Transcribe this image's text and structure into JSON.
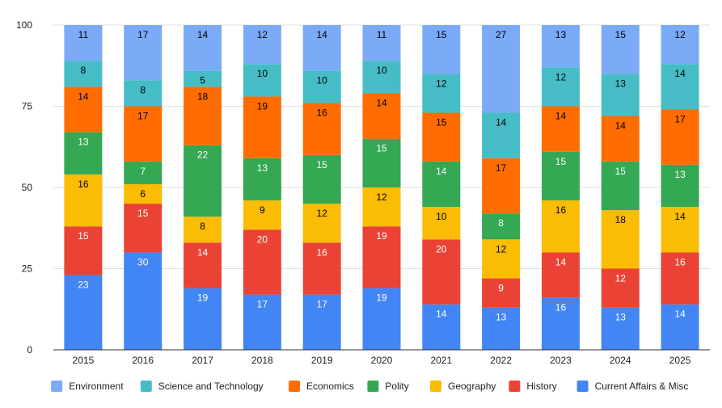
{
  "chart_data": {
    "type": "bar",
    "stacked": true,
    "title": "",
    "xlabel": "",
    "ylabel": "",
    "categories": [
      "2015",
      "2016",
      "2017",
      "2018",
      "2019",
      "2020",
      "2021",
      "2022",
      "2023",
      "2024",
      "2025"
    ],
    "ylim": [
      0,
      100
    ],
    "yticks": [
      0,
      25,
      50,
      75,
      100
    ],
    "grid": true,
    "legend_position": "bottom",
    "series": [
      {
        "name": "Current Affairs & Misc",
        "color": "#4285F4",
        "label_color": "#ffffff",
        "values": [
          23,
          30,
          19,
          17,
          17,
          19,
          14,
          13,
          16,
          13,
          14
        ]
      },
      {
        "name": "History",
        "color": "#EA4335",
        "label_color": "#ffffff",
        "values": [
          15,
          15,
          14,
          20,
          16,
          19,
          20,
          9,
          14,
          12,
          16
        ]
      },
      {
        "name": "Geography",
        "color": "#FBBC04",
        "label_color": "#000000",
        "values": [
          16,
          6,
          8,
          9,
          12,
          12,
          10,
          12,
          16,
          18,
          14
        ]
      },
      {
        "name": "Polity",
        "color": "#34A853",
        "label_color": "#ffffff",
        "values": [
          13,
          7,
          22,
          13,
          15,
          15,
          14,
          8,
          15,
          15,
          13
        ]
      },
      {
        "name": "Economics",
        "color": "#FF6D01",
        "label_color": "#000000",
        "values": [
          14,
          17,
          18,
          19,
          16,
          14,
          15,
          17,
          14,
          14,
          17
        ]
      },
      {
        "name": "Science and Technology",
        "color": "#46BDC6",
        "label_color": "#000000",
        "values": [
          8,
          8,
          5,
          10,
          10,
          10,
          12,
          14,
          12,
          13,
          14
        ]
      },
      {
        "name": "Environment",
        "color": "#7BAAF7",
        "label_color": "#000000",
        "values": [
          11,
          17,
          14,
          12,
          14,
          11,
          15,
          27,
          13,
          15,
          12
        ]
      }
    ],
    "legend_order": [
      "Environment",
      "Science and Technology",
      "Economics",
      "Polity",
      "Geography",
      "History",
      "Current Affairs & Misc"
    ]
  }
}
